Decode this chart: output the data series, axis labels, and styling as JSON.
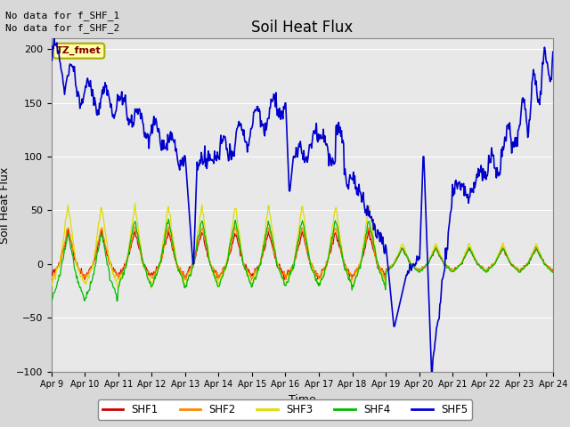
{
  "title": "Soil Heat Flux",
  "ylabel": "Soil Heat Flux",
  "xlabel": "Time",
  "note_line1": "No data for f_SHF_1",
  "note_line2": "No data for f_SHF_2",
  "tz_label": "TZ_fmet",
  "ylim": [
    -100,
    210
  ],
  "yticks": [
    -100,
    -50,
    0,
    50,
    100,
    150,
    200
  ],
  "colors": {
    "SHF1": "#cc0000",
    "SHF2": "#ff8800",
    "SHF3": "#dddd00",
    "SHF4": "#00bb00",
    "SHF5": "#0000cc"
  },
  "bg_color": "#d8d8d8",
  "plot_bg": "#e8e8e8",
  "grid_color": "#ffffff",
  "legend_labels": [
    "SHF1",
    "SHF2",
    "SHF3",
    "SHF4",
    "SHF5"
  ]
}
